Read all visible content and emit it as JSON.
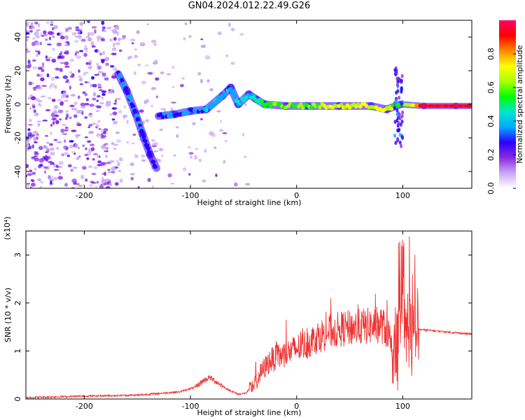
{
  "title": "GN04.2024.012.22.49.G26",
  "chart_data": [
    {
      "type": "heatmap",
      "xlabel": "Height of straight line (km)",
      "ylabel": "Frequency (Hz)",
      "xlim": [
        -255,
        165
      ],
      "ylim": [
        -50,
        50
      ],
      "xticks": [
        -200,
        -100,
        0,
        100
      ],
      "yticks": [
        -40,
        -20,
        0,
        20,
        40
      ],
      "colorbar": {
        "label": "Normalized spectral amplitude",
        "range": [
          0,
          1
        ],
        "ticks": [
          "0.0",
          "0.2",
          "0.4",
          "0.6",
          "0.8"
        ],
        "colors": [
          "#ffffff",
          "#c9a8f5",
          "#8a2be2",
          "#2b00ff",
          "#00aaff",
          "#00e5d0",
          "#00ff00",
          "#aaff00",
          "#ffff00",
          "#ff8800",
          "#ff0000",
          "#ff0066"
        ]
      },
      "ridge": [
        {
          "x": -168,
          "y": 18,
          "amp": 0.35
        },
        {
          "x": -160,
          "y": 8,
          "amp": 0.3
        },
        {
          "x": -152,
          "y": -5,
          "amp": 0.3
        },
        {
          "x": -145,
          "y": -18,
          "amp": 0.28
        },
        {
          "x": -138,
          "y": -30,
          "amp": 0.25
        },
        {
          "x": -132,
          "y": -38,
          "amp": 0.2
        },
        {
          "x": -130,
          "y": -7,
          "amp": 0.3
        },
        {
          "x": -115,
          "y": -6,
          "amp": 0.32
        },
        {
          "x": -100,
          "y": -4,
          "amp": 0.35
        },
        {
          "x": -85,
          "y": -3,
          "amp": 0.38
        },
        {
          "x": -70,
          "y": 5,
          "amp": 0.38
        },
        {
          "x": -62,
          "y": 10,
          "amp": 0.35
        },
        {
          "x": -55,
          "y": 0,
          "amp": 0.4
        },
        {
          "x": -45,
          "y": 6,
          "amp": 0.42
        },
        {
          "x": -38,
          "y": 3,
          "amp": 0.45
        },
        {
          "x": -30,
          "y": 0,
          "amp": 0.55
        },
        {
          "x": -10,
          "y": -1,
          "amp": 0.6
        },
        {
          "x": 10,
          "y": -1,
          "amp": 0.62
        },
        {
          "x": 40,
          "y": -1,
          "amp": 0.65
        },
        {
          "x": 70,
          "y": -1,
          "amp": 0.7
        },
        {
          "x": 85,
          "y": -3,
          "amp": 0.7
        },
        {
          "x": 98,
          "y": 0,
          "amp": 0.5
        },
        {
          "x": 120,
          "y": -1,
          "amp": 0.95
        },
        {
          "x": 150,
          "y": -1,
          "amp": 0.95
        },
        {
          "x": 165,
          "y": -1,
          "amp": 0.95
        }
      ]
    },
    {
      "type": "line",
      "xlabel": "Height of straight line (km)",
      "ylabel": "SNR (10 * v/v)",
      "yunit_label": "(x10⁴)",
      "xlim": [
        -255,
        165
      ],
      "ylim": [
        0,
        3.5
      ],
      "xticks": [
        -200,
        -100,
        0,
        100
      ],
      "yticks": [
        0,
        1,
        2,
        3
      ],
      "color": "#ee3333",
      "series": [
        {
          "x": [
            -255,
            -200,
            -150,
            -110,
            -95,
            -88,
            -82,
            -75,
            -65,
            -55,
            -48,
            -40,
            -35,
            -30,
            -25,
            -20,
            -15,
            -10,
            -5,
            0,
            10,
            20,
            30,
            40,
            50,
            60,
            70,
            80,
            85,
            90,
            95,
            98,
            100,
            102,
            105,
            108,
            110,
            112,
            115,
            130,
            150,
            165
          ],
          "y": [
            0.03,
            0.06,
            0.08,
            0.15,
            0.25,
            0.38,
            0.45,
            0.35,
            0.2,
            0.1,
            0.12,
            0.3,
            0.5,
            0.65,
            0.8,
            0.85,
            0.9,
            0.95,
            1.0,
            1.05,
            1.15,
            1.3,
            1.4,
            1.45,
            1.48,
            1.5,
            1.52,
            1.55,
            1.4,
            1.2,
            1.0,
            1.5,
            2.0,
            1.2,
            1.6,
            1.3,
            1.1,
            1.5,
            1.45,
            1.42,
            1.38,
            1.35
          ]
        }
      ]
    }
  ]
}
